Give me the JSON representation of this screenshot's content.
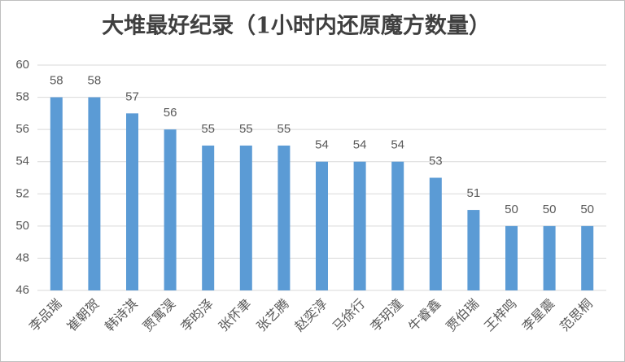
{
  "chart_data": {
    "type": "bar",
    "title": "大堆最好纪录（1小时内还原魔方数量）",
    "categories": [
      "李品瑞",
      "崔朝贺",
      "韩诗淇",
      "贾寓淏",
      "李昀泽",
      "张怀聿",
      "张艺腾",
      "赵奕淳",
      "马徐行",
      "李玥潼",
      "牛睿鑫",
      "贾伯瑞",
      "王梓鸣",
      "李星震",
      "范思桐"
    ],
    "values": [
      58,
      58,
      57,
      56,
      55,
      55,
      55,
      54,
      54,
      54,
      53,
      51,
      50,
      50,
      50
    ],
    "color": "#5b9bd5",
    "ylim": [
      46,
      60
    ],
    "yticks": [
      46,
      48,
      50,
      52,
      54,
      56,
      58,
      60
    ],
    "grid": true
  }
}
